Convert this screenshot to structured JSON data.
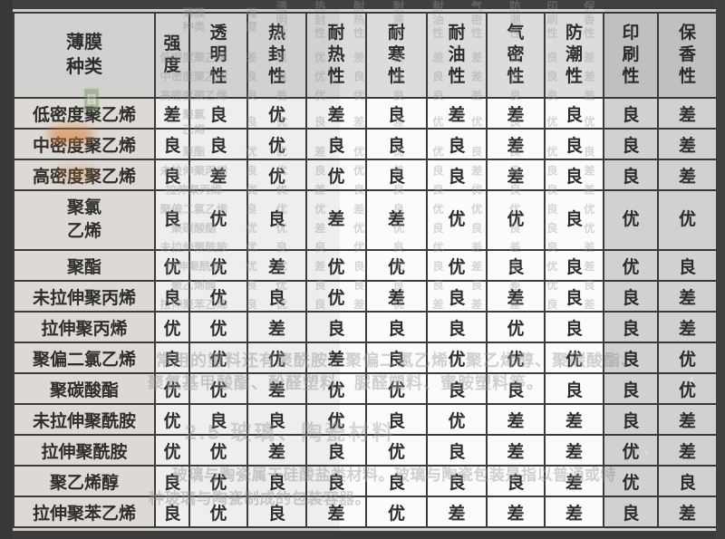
{
  "table": {
    "title_cell": "薄膜\n种类",
    "columns": [
      "强\n度",
      "透\n明\n性",
      "热\n封\n性",
      "耐\n热\n性",
      "耐\n寒\n性",
      "耐\n油\n性",
      "气\n密\n性",
      "防\n潮\n性",
      "印\n刷\n性",
      "保\n香\n性"
    ],
    "rows": [
      {
        "name": "低密度聚乙烯",
        "values": [
          "差",
          "良",
          "优",
          "差",
          "良",
          "差",
          "差",
          "良",
          "良",
          "差"
        ]
      },
      {
        "name": "中密度聚乙烯",
        "values": [
          "良",
          "良",
          "优",
          "良",
          "良",
          "良",
          "差",
          "良",
          "良",
          "差"
        ]
      },
      {
        "name": "高密度聚乙烯",
        "values": [
          "良",
          "差",
          "优",
          "优",
          "良",
          "良",
          "差",
          "良",
          "良",
          "差"
        ]
      },
      {
        "name": "聚氯\n乙烯",
        "values": [
          "良",
          "优",
          "良",
          "差",
          "差",
          "优",
          "优",
          "良",
          "优",
          "优"
        ]
      },
      {
        "name": "聚酯",
        "values": [
          "优",
          "优",
          "差",
          "优",
          "优",
          "优",
          "良",
          "良",
          "优",
          "良"
        ]
      },
      {
        "name": "未拉伸聚丙烯",
        "values": [
          "良",
          "优",
          "良",
          "优",
          "差",
          "良",
          "差",
          "良",
          "良",
          "差"
        ]
      },
      {
        "name": "拉伸聚丙烯",
        "values": [
          "优",
          "优",
          "差",
          "良",
          "良",
          "良",
          "优",
          "良",
          "良",
          "差"
        ]
      },
      {
        "name": "聚偏二氯乙烯",
        "values": [
          "良",
          "优",
          "优",
          "差",
          "良",
          "优",
          "优",
          "优",
          "良",
          "优"
        ]
      },
      {
        "name": "聚碳酸酯",
        "values": [
          "优",
          "优",
          "差",
          "优",
          "优",
          "良",
          "良",
          "良",
          "良",
          "优"
        ]
      },
      {
        "name": "未拉伸聚酰胺",
        "values": [
          "优",
          "良",
          "良",
          "优",
          "良",
          "优",
          "差",
          "差",
          "良",
          "差"
        ]
      },
      {
        "name": "拉伸聚酰胺",
        "values": [
          "优",
          "优",
          "差",
          "良",
          "优",
          "良",
          "差",
          "差",
          "优",
          "差"
        ]
      },
      {
        "name": "聚乙烯醇",
        "values": [
          "良",
          "优",
          "良",
          "良",
          "良",
          "良",
          "良",
          "差",
          "优",
          "良"
        ]
      },
      {
        "name": "拉伸聚苯乙烯",
        "values": [
          "良",
          "优",
          "良",
          "差",
          "优",
          "差",
          "差",
          "差",
          "良",
          "差"
        ]
      }
    ],
    "rating_legend": {
      "excellent": "优",
      "good": "良",
      "poor": "差"
    }
  },
  "background_ghosts": {
    "para1": "常用的塑料还有聚酰胺、聚偏二氯乙烯、聚乙烯醇、聚碳酸酯、",
    "para2": "聚氨基甲酸酯、酚醛塑料、脲醛塑料、蜜胺塑料等。",
    "heading": "2.5  玻璃、陶瓷材料",
    "para3": "玻璃与陶瓷属于硅酸盐类材料。玻璃与陶瓷包装是指以普通或特",
    "para4": "种玻璃与陶瓷制成的包装容器。",
    "menu_glyph": "目",
    "chevron_left": "‹",
    "chevron_right": "›"
  },
  "colors": {
    "surround": "#464646",
    "header_bg": "#dcdcdc",
    "row_header_bg": "#e8e6e2",
    "cell_bg": "#fbfbfb",
    "shaded_col_bg": "#e6e6e6",
    "grid_line": "#3c3c3c",
    "text": "#2d2d2d",
    "ghost_text": "#9b9b9b"
  }
}
